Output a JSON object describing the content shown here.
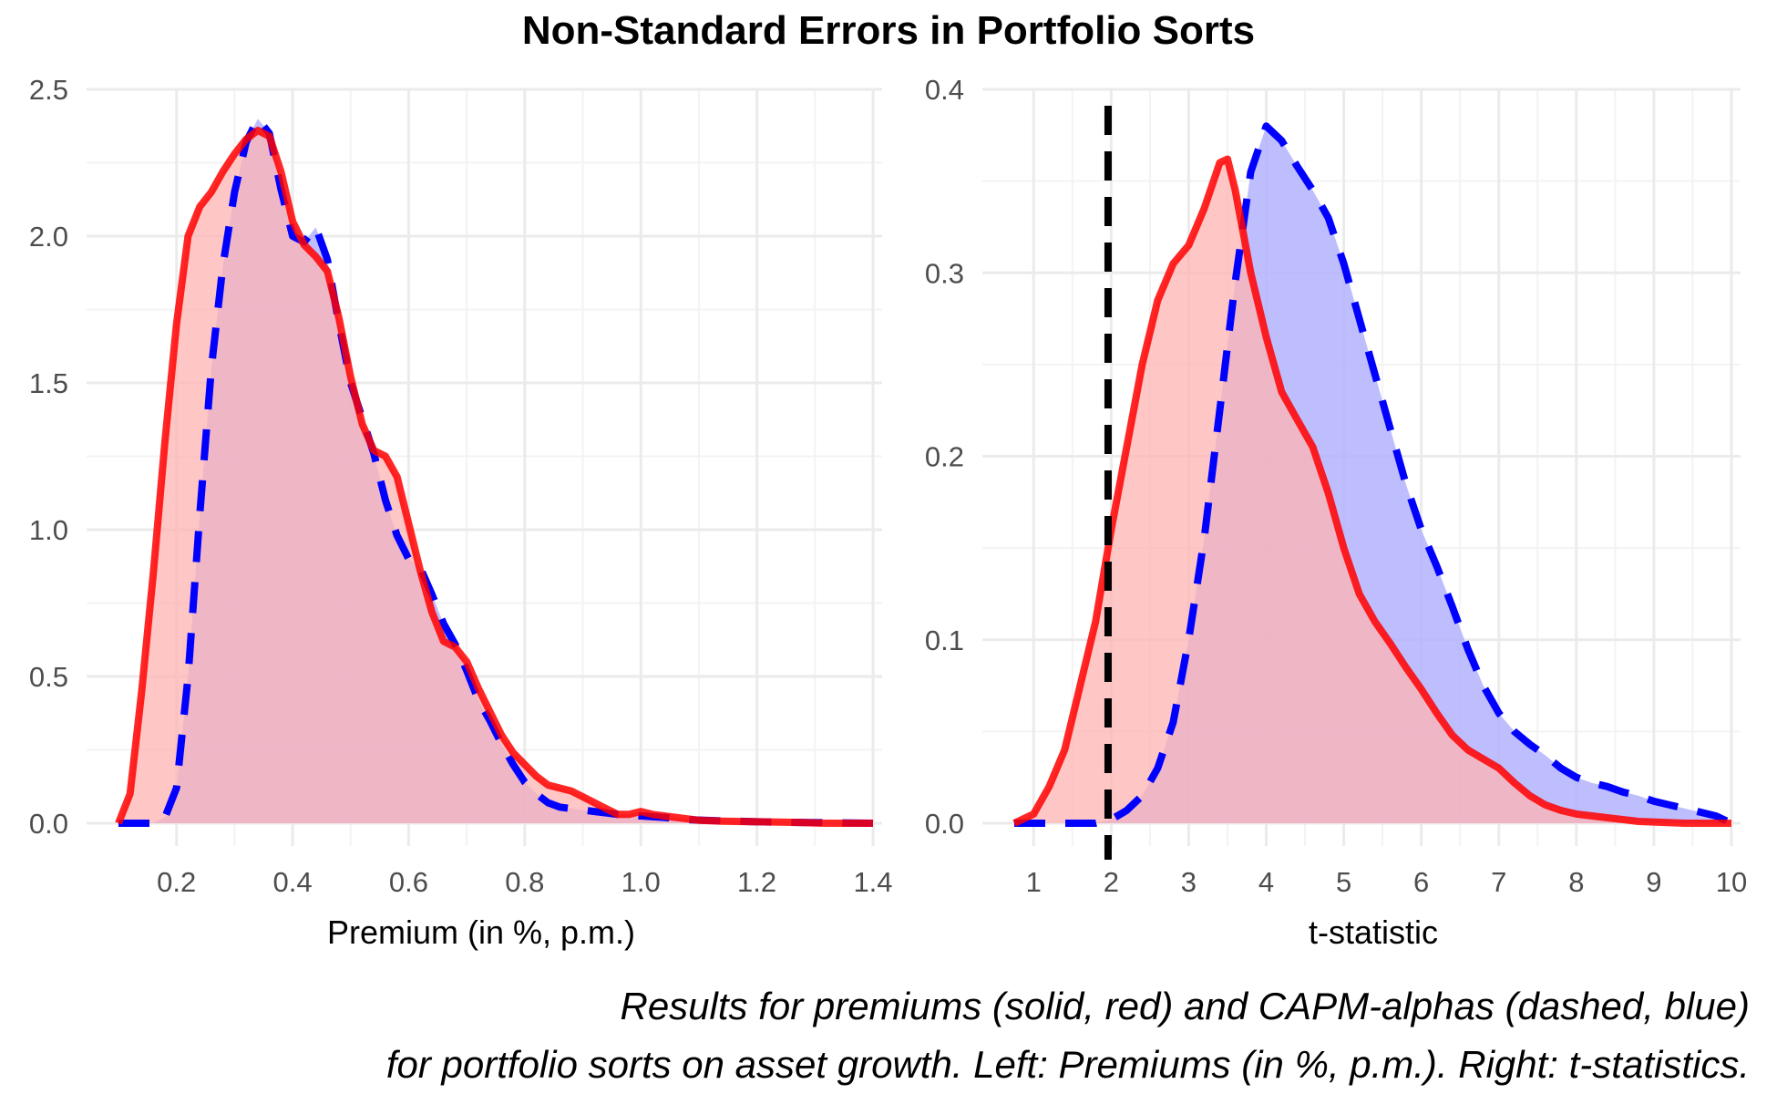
{
  "title": "Non-Standard Errors in Portfolio Sorts",
  "caption": [
    "Results for premiums (solid, red) and CAPM-alphas (dashed, blue)",
    "for portfolio sorts on asset growth. Left: Premiums (in %, p.m.). Right: t-statistics."
  ],
  "colors": {
    "premium_line": "#ff0000",
    "premium_fill": "#ffb3b3",
    "alpha_line": "#0000ff",
    "alpha_fill": "#b3b3ff",
    "reference_line": "#000000",
    "grid": "#ebebeb"
  },
  "chart_data": [
    {
      "type": "area",
      "panel": "left",
      "xlabel": "Premium (in %, p.m.)",
      "ylabel": "",
      "xlim": [
        0.1,
        1.4
      ],
      "ylim": [
        0,
        2.5
      ],
      "xticks": [
        0.2,
        0.4,
        0.6,
        0.8,
        1.0,
        1.2,
        1.4
      ],
      "xtick_labels": [
        "0.2",
        "0.4",
        "0.6",
        "0.8",
        "1.0",
        "1.2",
        "1.4"
      ],
      "yticks": [
        0,
        0.5,
        1.0,
        1.5,
        2.0,
        2.5
      ],
      "ytick_labels": [
        "0.0",
        "0.5",
        "1.0",
        "1.5",
        "2.0",
        "2.5"
      ],
      "grid": true,
      "series": [
        {
          "style": "solid",
          "points": [
            [
              0.1,
              0.0
            ],
            [
              0.12,
              0.1
            ],
            [
              0.14,
              0.45
            ],
            [
              0.16,
              0.85
            ],
            [
              0.18,
              1.3
            ],
            [
              0.2,
              1.7
            ],
            [
              0.22,
              2.0
            ],
            [
              0.24,
              2.1
            ],
            [
              0.26,
              2.15
            ],
            [
              0.28,
              2.22
            ],
            [
              0.3,
              2.28
            ],
            [
              0.32,
              2.33
            ],
            [
              0.34,
              2.36
            ],
            [
              0.36,
              2.34
            ],
            [
              0.38,
              2.22
            ],
            [
              0.4,
              2.05
            ],
            [
              0.42,
              1.97
            ],
            [
              0.44,
              1.93
            ],
            [
              0.46,
              1.88
            ],
            [
              0.48,
              1.72
            ],
            [
              0.5,
              1.52
            ],
            [
              0.52,
              1.36
            ],
            [
              0.54,
              1.27
            ],
            [
              0.56,
              1.25
            ],
            [
              0.58,
              1.18
            ],
            [
              0.6,
              1.02
            ],
            [
              0.62,
              0.86
            ],
            [
              0.64,
              0.72
            ],
            [
              0.66,
              0.62
            ],
            [
              0.68,
              0.6
            ],
            [
              0.7,
              0.55
            ],
            [
              0.72,
              0.46
            ],
            [
              0.74,
              0.38
            ],
            [
              0.76,
              0.3
            ],
            [
              0.78,
              0.24
            ],
            [
              0.8,
              0.2
            ],
            [
              0.82,
              0.16
            ],
            [
              0.84,
              0.13
            ],
            [
              0.86,
              0.12
            ],
            [
              0.88,
              0.11
            ],
            [
              0.9,
              0.09
            ],
            [
              0.92,
              0.07
            ],
            [
              0.94,
              0.05
            ],
            [
              0.96,
              0.03
            ],
            [
              0.98,
              0.03
            ],
            [
              1.0,
              0.04
            ],
            [
              1.02,
              0.03
            ],
            [
              1.04,
              0.025
            ],
            [
              1.06,
              0.02
            ],
            [
              1.08,
              0.015
            ],
            [
              1.1,
              0.01
            ],
            [
              1.14,
              0.007
            ],
            [
              1.2,
              0.005
            ],
            [
              1.26,
              0.003
            ],
            [
              1.32,
              0.0
            ],
            [
              1.4,
              0.0
            ]
          ]
        },
        {
          "style": "dashed",
          "points": [
            [
              0.1,
              0.0
            ],
            [
              0.16,
              0.0
            ],
            [
              0.18,
              0.02
            ],
            [
              0.2,
              0.12
            ],
            [
              0.22,
              0.5
            ],
            [
              0.24,
              1.05
            ],
            [
              0.26,
              1.55
            ],
            [
              0.28,
              1.9
            ],
            [
              0.3,
              2.15
            ],
            [
              0.32,
              2.32
            ],
            [
              0.34,
              2.4
            ],
            [
              0.36,
              2.35
            ],
            [
              0.38,
              2.16
            ],
            [
              0.4,
              2.0
            ],
            [
              0.42,
              1.98
            ],
            [
              0.44,
              2.03
            ],
            [
              0.46,
              1.92
            ],
            [
              0.48,
              1.7
            ],
            [
              0.5,
              1.5
            ],
            [
              0.52,
              1.38
            ],
            [
              0.54,
              1.26
            ],
            [
              0.56,
              1.1
            ],
            [
              0.58,
              0.98
            ],
            [
              0.6,
              0.9
            ],
            [
              0.62,
              0.87
            ],
            [
              0.64,
              0.78
            ],
            [
              0.66,
              0.68
            ],
            [
              0.68,
              0.61
            ],
            [
              0.7,
              0.52
            ],
            [
              0.72,
              0.42
            ],
            [
              0.74,
              0.35
            ],
            [
              0.76,
              0.27
            ],
            [
              0.78,
              0.2
            ],
            [
              0.8,
              0.14
            ],
            [
              0.82,
              0.1
            ],
            [
              0.84,
              0.07
            ],
            [
              0.86,
              0.055
            ],
            [
              0.88,
              0.05
            ],
            [
              0.9,
              0.045
            ],
            [
              0.92,
              0.04
            ],
            [
              0.94,
              0.035
            ],
            [
              0.96,
              0.03
            ],
            [
              1.0,
              0.025
            ],
            [
              1.04,
              0.02
            ],
            [
              1.08,
              0.012
            ],
            [
              1.14,
              0.008
            ],
            [
              1.2,
              0.005
            ],
            [
              1.26,
              0.003
            ],
            [
              1.32,
              0.002
            ],
            [
              1.4,
              0.0
            ]
          ]
        }
      ]
    },
    {
      "type": "area",
      "panel": "right",
      "xlabel": "t-statistic",
      "ylabel": "",
      "xlim": [
        0.75,
        10.0
      ],
      "ylim": [
        0,
        0.4
      ],
      "xticks": [
        1,
        2,
        3,
        4,
        5,
        6,
        7,
        8,
        9,
        10
      ],
      "xtick_labels": [
        "1",
        "2",
        "3",
        "4",
        "5",
        "6",
        "7",
        "8",
        "9",
        "10"
      ],
      "yticks": [
        0,
        0.1,
        0.2,
        0.3,
        0.4
      ],
      "ytick_labels": [
        "0.0",
        "0.1",
        "0.2",
        "0.3",
        "0.4"
      ],
      "grid": true,
      "reference_line": {
        "x": 1.96,
        "style": "dashed"
      },
      "series": [
        {
          "style": "solid",
          "points": [
            [
              0.75,
              0.0
            ],
            [
              1.0,
              0.005
            ],
            [
              1.2,
              0.02
            ],
            [
              1.4,
              0.04
            ],
            [
              1.6,
              0.075
            ],
            [
              1.8,
              0.11
            ],
            [
              2.0,
              0.16
            ],
            [
              2.2,
              0.205
            ],
            [
              2.4,
              0.25
            ],
            [
              2.6,
              0.285
            ],
            [
              2.8,
              0.305
            ],
            [
              3.0,
              0.315
            ],
            [
              3.2,
              0.335
            ],
            [
              3.4,
              0.36
            ],
            [
              3.5,
              0.362
            ],
            [
              3.6,
              0.345
            ],
            [
              3.8,
              0.3
            ],
            [
              4.0,
              0.265
            ],
            [
              4.2,
              0.235
            ],
            [
              4.4,
              0.22
            ],
            [
              4.6,
              0.205
            ],
            [
              4.8,
              0.18
            ],
            [
              5.0,
              0.15
            ],
            [
              5.2,
              0.125
            ],
            [
              5.4,
              0.11
            ],
            [
              5.6,
              0.098
            ],
            [
              5.8,
              0.085
            ],
            [
              6.0,
              0.073
            ],
            [
              6.2,
              0.06
            ],
            [
              6.4,
              0.048
            ],
            [
              6.6,
              0.04
            ],
            [
              6.8,
              0.035
            ],
            [
              7.0,
              0.03
            ],
            [
              7.2,
              0.022
            ],
            [
              7.4,
              0.015
            ],
            [
              7.6,
              0.01
            ],
            [
              7.8,
              0.007
            ],
            [
              8.0,
              0.005
            ],
            [
              8.4,
              0.003
            ],
            [
              8.8,
              0.001
            ],
            [
              9.4,
              0.0
            ],
            [
              10.0,
              0.0
            ]
          ]
        },
        {
          "style": "dashed",
          "points": [
            [
              0.75,
              0.0
            ],
            [
              1.8,
              0.0
            ],
            [
              2.0,
              0.002
            ],
            [
              2.2,
              0.007
            ],
            [
              2.4,
              0.015
            ],
            [
              2.6,
              0.03
            ],
            [
              2.8,
              0.055
            ],
            [
              3.0,
              0.1
            ],
            [
              3.2,
              0.155
            ],
            [
              3.4,
              0.225
            ],
            [
              3.6,
              0.295
            ],
            [
              3.8,
              0.355
            ],
            [
              4.0,
              0.38
            ],
            [
              4.2,
              0.372
            ],
            [
              4.4,
              0.358
            ],
            [
              4.6,
              0.345
            ],
            [
              4.8,
              0.33
            ],
            [
              5.0,
              0.305
            ],
            [
              5.2,
              0.275
            ],
            [
              5.4,
              0.245
            ],
            [
              5.6,
              0.215
            ],
            [
              5.8,
              0.185
            ],
            [
              6.0,
              0.16
            ],
            [
              6.2,
              0.14
            ],
            [
              6.4,
              0.118
            ],
            [
              6.6,
              0.095
            ],
            [
              6.8,
              0.075
            ],
            [
              7.0,
              0.06
            ],
            [
              7.2,
              0.05
            ],
            [
              7.4,
              0.043
            ],
            [
              7.6,
              0.037
            ],
            [
              7.8,
              0.03
            ],
            [
              8.0,
              0.025
            ],
            [
              8.2,
              0.022
            ],
            [
              8.4,
              0.02
            ],
            [
              8.6,
              0.017
            ],
            [
              8.8,
              0.015
            ],
            [
              9.0,
              0.012
            ],
            [
              9.2,
              0.01
            ],
            [
              9.4,
              0.008
            ],
            [
              9.6,
              0.006
            ],
            [
              9.8,
              0.004
            ],
            [
              10.0,
              0.0
            ]
          ]
        }
      ]
    }
  ]
}
